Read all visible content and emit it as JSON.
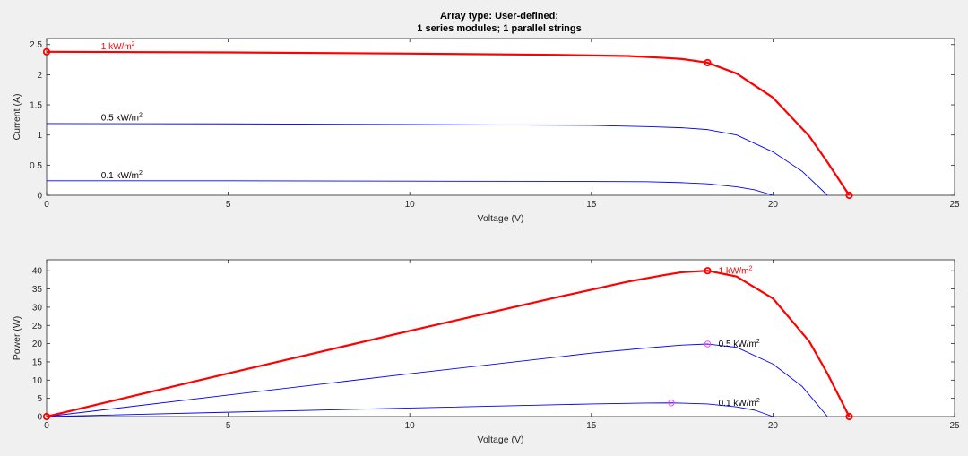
{
  "title_lines": [
    "Array type: User-defined;",
    "1 series modules; 1 parallel strings"
  ],
  "colors": {
    "background": "#f0f0f0",
    "plot_bg": "#ffffff",
    "high": "#ff0000",
    "low": "#0000ff",
    "mpp_low": "#ff44ff",
    "grid_text": "#262626"
  },
  "chart_data": [
    {
      "type": "line",
      "xlabel": "Voltage (V)",
      "ylabel": "Current (A)",
      "xlim": [
        0,
        25
      ],
      "ylim": [
        0,
        2.6
      ],
      "xticks": [
        0,
        5,
        10,
        15,
        20,
        25
      ],
      "yticks": [
        0,
        0.5,
        1,
        1.5,
        2,
        2.5
      ],
      "ytick_labels": [
        "0",
        "0.5",
        "1",
        "1.5",
        "2",
        "2.5"
      ],
      "series": [
        {
          "name": "1 kW/m",
          "color": "red",
          "x": [
            0,
            5,
            10,
            14,
            16,
            17,
            17.5,
            18.2,
            19,
            20,
            21,
            21.5,
            22.1
          ],
          "y": [
            2.38,
            2.37,
            2.35,
            2.33,
            2.31,
            2.28,
            2.26,
            2.2,
            2.02,
            1.62,
            0.98,
            0.55,
            0
          ],
          "markers": [
            [
              0,
              2.38
            ],
            [
              18.2,
              2.2
            ],
            [
              22.1,
              0
            ]
          ]
        },
        {
          "name": "0.5 kW/m",
          "color": "blue",
          "x": [
            0,
            5,
            10,
            15,
            16.5,
            17.5,
            18.2,
            19,
            20,
            20.8,
            21.5
          ],
          "y": [
            1.19,
            1.185,
            1.175,
            1.16,
            1.14,
            1.12,
            1.09,
            1.0,
            0.72,
            0.4,
            0
          ],
          "markers": []
        },
        {
          "name": "0.1 kW/m",
          "color": "blue",
          "x": [
            0,
            5,
            10,
            15,
            16.5,
            17.5,
            18.2,
            19,
            19.5,
            20
          ],
          "y": [
            0.24,
            0.24,
            0.235,
            0.23,
            0.225,
            0.21,
            0.19,
            0.14,
            0.09,
            0
          ],
          "markers": []
        }
      ],
      "labels": [
        {
          "text": "1 kW/m",
          "sup": "2",
          "x": 1.5,
          "y": 2.42,
          "color": "red"
        },
        {
          "text": "0.5 kW/m",
          "sup": "2",
          "x": 1.5,
          "y": 1.24,
          "color": "black"
        },
        {
          "text": "0.1 kW/m",
          "sup": "2",
          "x": 1.5,
          "y": 0.28,
          "color": "black"
        }
      ]
    },
    {
      "type": "line",
      "xlabel": "Voltage (V)",
      "ylabel": "Power (W)",
      "xlim": [
        0,
        25
      ],
      "ylim": [
        0,
        43
      ],
      "xticks": [
        0,
        5,
        10,
        15,
        20,
        25
      ],
      "yticks": [
        0,
        5,
        10,
        15,
        20,
        25,
        30,
        35,
        40
      ],
      "ytick_labels": [
        "0",
        "5",
        "10",
        "15",
        "20",
        "25",
        "30",
        "35",
        "40"
      ],
      "series": [
        {
          "name": "1 kW/m",
          "color": "red",
          "x": [
            0,
            5,
            10,
            14,
            16,
            17,
            17.5,
            18.2,
            19,
            20,
            21,
            21.5,
            22.1
          ],
          "y": [
            0,
            11.85,
            23.5,
            32.6,
            37.0,
            38.8,
            39.6,
            40.0,
            38.4,
            32.4,
            20.6,
            11.8,
            0
          ],
          "markers": [
            [
              0,
              0
            ],
            [
              18.2,
              40.0
            ],
            [
              22.1,
              0
            ]
          ]
        },
        {
          "name": "0.5 kW/m",
          "color": "blue",
          "x": [
            0,
            5,
            10,
            15,
            16.5,
            17.5,
            18.2,
            19,
            20,
            20.8,
            21.5
          ],
          "y": [
            0,
            5.9,
            11.75,
            17.4,
            18.8,
            19.6,
            19.9,
            19.0,
            14.4,
            8.3,
            0
          ],
          "markers": [
            [
              18.2,
              19.9
            ]
          ]
        },
        {
          "name": "0.1 kW/m",
          "color": "blue",
          "x": [
            0,
            5,
            10,
            15,
            16.5,
            17.2,
            17.5,
            18.2,
            19,
            19.5,
            20
          ],
          "y": [
            0,
            1.2,
            2.35,
            3.45,
            3.7,
            3.75,
            3.68,
            3.46,
            2.66,
            1.75,
            0
          ],
          "markers": [
            [
              17.2,
              3.75
            ]
          ]
        }
      ],
      "labels": [
        {
          "text": "1 kW/m",
          "sup": "2",
          "x": 18.5,
          "y": 39.2,
          "color": "red"
        },
        {
          "text": "0.5 kW/m",
          "sup": "2",
          "x": 18.5,
          "y": 19.2,
          "color": "black"
        },
        {
          "text": "0.1 kW/m",
          "sup": "2",
          "x": 18.5,
          "y": 3.0,
          "color": "black"
        }
      ]
    }
  ]
}
